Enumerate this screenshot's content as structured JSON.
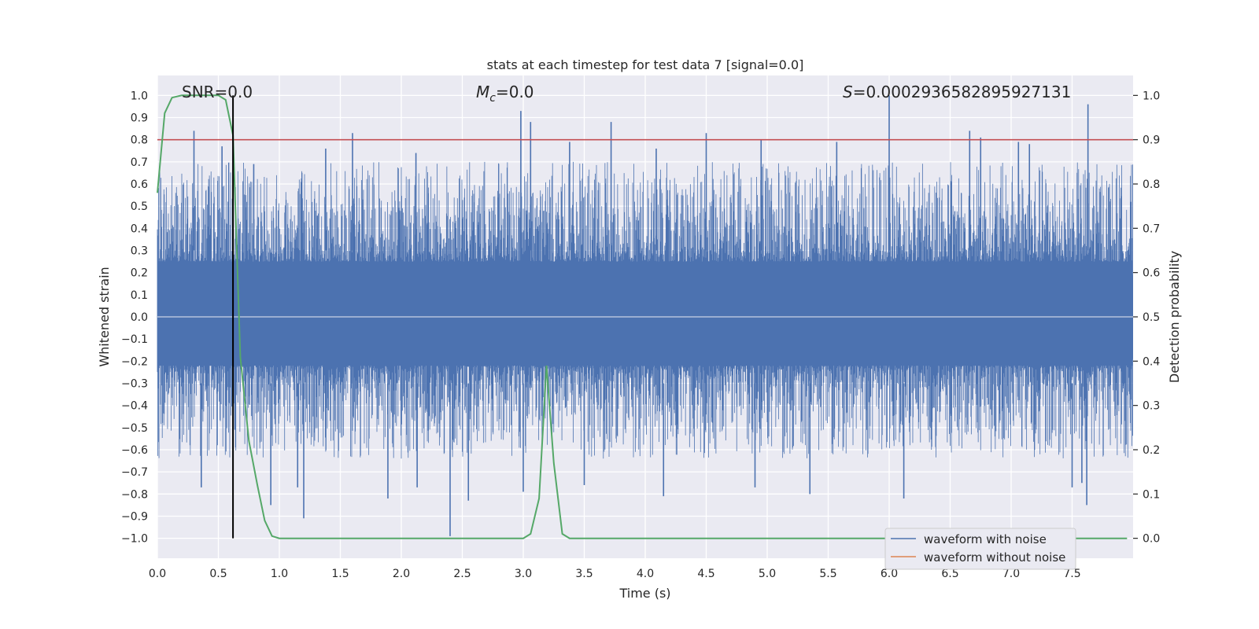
{
  "chart_data": {
    "type": "line",
    "title": "stats at each timestep for test data 7 [signal=0.0]",
    "xlabel": "Time (s)",
    "ylabel_left": "Whitened strain",
    "ylabel_right": "Detection probability",
    "xlim": [
      0.0,
      8.0
    ],
    "ylim_left": [
      -1.09,
      1.09
    ],
    "ylim_right": [
      -0.045,
      1.045
    ],
    "x_ticks": [
      "0.0",
      "0.5",
      "1.0",
      "1.5",
      "2.0",
      "2.5",
      "3.0",
      "3.5",
      "4.0",
      "4.5",
      "5.0",
      "5.5",
      "6.0",
      "6.5",
      "7.0",
      "7.5"
    ],
    "y_ticks_left": [
      "1.0",
      "0.9",
      "0.8",
      "0.7",
      "0.6",
      "0.5",
      "0.4",
      "0.3",
      "0.2",
      "0.1",
      "0.0",
      "−0.1",
      "−0.2",
      "−0.3",
      "−0.4",
      "−0.5",
      "−0.6",
      "−0.7",
      "−0.8",
      "−0.9",
      "−1.0"
    ],
    "y_ticks_right": [
      "1.0",
      "0.9",
      "0.8",
      "0.7",
      "0.6",
      "0.5",
      "0.4",
      "0.3",
      "0.2",
      "0.1",
      "0.0"
    ],
    "grid": true,
    "legend_position": "lower-right",
    "annotations": {
      "snr": "SNR=0.0",
      "mc_symbol": "M",
      "mc_sub": "c",
      "mc_value": "=0.0",
      "s_symbol": "S",
      "s_value": "=0.0002936582895927131"
    },
    "series": [
      {
        "name": "waveform with noise",
        "color": "#4c72b0",
        "axis": "left",
        "description_values": "noise waveform mostly within ±0.4 with spikes up to 1.0 and down to -0.99"
      },
      {
        "name": "waveform without noise",
        "color": "#dd8452",
        "axis": "left",
        "values": []
      },
      {
        "name": "",
        "color": "#55a868",
        "axis": "right",
        "x": [
          0.0,
          0.06,
          0.12,
          0.2,
          0.3,
          0.4,
          0.5,
          0.56,
          0.62,
          0.68,
          0.75,
          0.82,
          0.88,
          0.94,
          1.0,
          1.5,
          2.0,
          2.5,
          3.0,
          3.06,
          3.13,
          3.19,
          3.25,
          3.32,
          3.38,
          4.0,
          5.0,
          6.0,
          7.0,
          7.95
        ],
        "values": [
          0.78,
          0.96,
          0.995,
          1.0,
          1.0,
          1.0,
          1.0,
          0.99,
          0.91,
          0.41,
          0.22,
          0.12,
          0.04,
          0.005,
          0.0,
          0.0,
          0.0,
          0.0,
          0.0,
          0.01,
          0.09,
          0.39,
          0.17,
          0.01,
          0.0,
          0.0,
          0.0,
          0.0,
          0.0,
          0.0
        ]
      }
    ],
    "threshold_line": {
      "value_right_axis": 0.9,
      "color": "#c44e52"
    },
    "marker_line": {
      "x": 0.62,
      "color": "#000000"
    },
    "spikes": {
      "up": [
        [
          0.3,
          0.84
        ],
        [
          0.53,
          0.77
        ],
        [
          1.6,
          0.83
        ],
        [
          2.98,
          0.93
        ],
        [
          3.06,
          0.88
        ],
        [
          3.38,
          0.79
        ],
        [
          3.72,
          0.88
        ],
        [
          4.5,
          0.83
        ],
        [
          4.95,
          0.8
        ],
        [
          6.0,
          1.0
        ],
        [
          6.66,
          0.84
        ],
        [
          6.75,
          0.81
        ],
        [
          7.63,
          0.96
        ],
        [
          0.79,
          0.69
        ],
        [
          2.12,
          0.74
        ],
        [
          5.57,
          0.79
        ],
        [
          7.06,
          0.79
        ],
        [
          7.15,
          0.78
        ],
        [
          1.38,
          0.76
        ],
        [
          4.09,
          0.76
        ]
      ],
      "down": [
        [
          2.4,
          -0.99
        ],
        [
          1.2,
          -0.91
        ],
        [
          0.36,
          -0.77
        ],
        [
          0.93,
          -0.85
        ],
        [
          1.15,
          -0.77
        ],
        [
          1.89,
          -0.82
        ],
        [
          2.13,
          -0.77
        ],
        [
          2.55,
          -0.83
        ],
        [
          3.0,
          -0.79
        ],
        [
          3.5,
          -0.76
        ],
        [
          4.15,
          -0.81
        ],
        [
          5.35,
          -0.8
        ],
        [
          6.12,
          -0.82
        ],
        [
          7.5,
          -0.77
        ],
        [
          7.62,
          -0.85
        ],
        [
          7.58,
          -0.75
        ],
        [
          4.9,
          -0.77
        ]
      ]
    }
  }
}
